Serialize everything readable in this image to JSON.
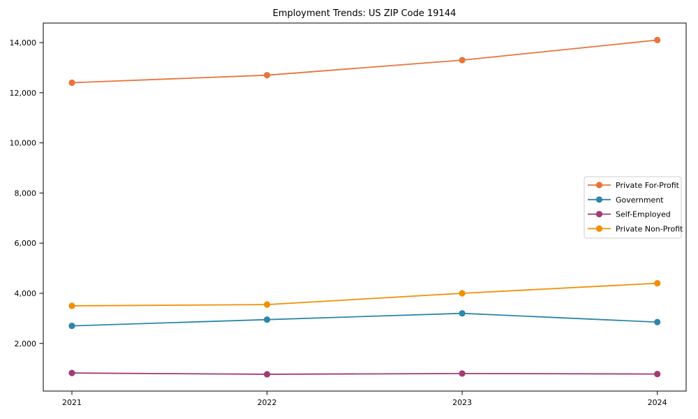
{
  "window": {
    "background_color": "#ffffff"
  },
  "chart_data": {
    "type": "line",
    "title": "Employment Trends: US ZIP Code 19144",
    "xlabel": "",
    "ylabel": "",
    "grid": false,
    "legend_position": "center-right",
    "categories": [
      "2021",
      "2022",
      "2023",
      "2024"
    ],
    "series": [
      {
        "name": "Private For-Profit",
        "color": "#E8743B",
        "values": [
          12400,
          12700,
          13300,
          14100
        ]
      },
      {
        "name": "Government",
        "color": "#2E86AB",
        "values": [
          2700,
          2950,
          3200,
          2850
        ]
      },
      {
        "name": "Self-Employed",
        "color": "#A23B72",
        "values": [
          820,
          770,
          800,
          780
        ]
      },
      {
        "name": "Private Non-Profit",
        "color": "#F18F01",
        "values": [
          3500,
          3550,
          4000,
          4400
        ]
      }
    ],
    "y_ticks": [
      {
        "value": 2000,
        "label": "2,000"
      },
      {
        "value": 4000,
        "label": "4,000"
      },
      {
        "value": 6000,
        "label": "6,000"
      },
      {
        "value": 8000,
        "label": "8,000"
      },
      {
        "value": 10000,
        "label": "10,000"
      },
      {
        "value": 12000,
        "label": "12,000"
      },
      {
        "value": 14000,
        "label": "14,000"
      }
    ],
    "ylim": [
      100,
      14780
    ],
    "axis_color": "#000000",
    "legend_border_color": "#cccccc",
    "legend_background": "#ffffff"
  }
}
